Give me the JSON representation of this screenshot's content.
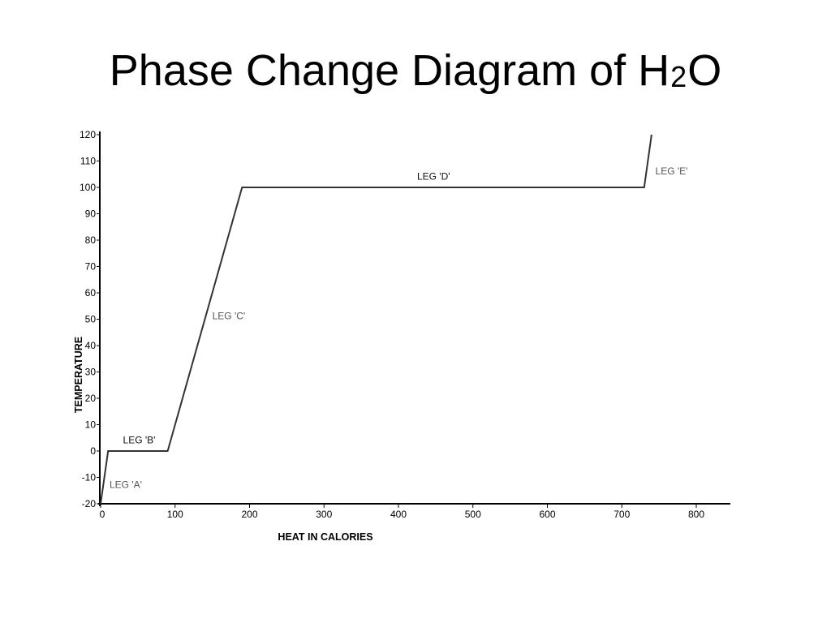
{
  "title": {
    "main": "Phase Change Diagram of H",
    "subscript": "2",
    "suffix": "O"
  },
  "chart_data": {
    "type": "line",
    "title": "Phase Change Diagram of H2O",
    "xlabel": "HEAT IN CALORIES",
    "ylabel": "TEMPERATURE",
    "xlim": [
      0,
      840
    ],
    "ylim": [
      -20,
      120
    ],
    "x_ticks": [
      0,
      100,
      200,
      300,
      400,
      500,
      600,
      700,
      800
    ],
    "y_ticks": [
      -20,
      -10,
      0,
      10,
      20,
      30,
      40,
      50,
      60,
      70,
      80,
      90,
      100,
      110,
      120
    ],
    "grid": false,
    "series": [
      {
        "points": [
          {
            "x": 0,
            "y": -20
          },
          {
            "x": 10,
            "y": 0
          },
          {
            "x": 90,
            "y": 0
          },
          {
            "x": 190,
            "y": 100
          },
          {
            "x": 730,
            "y": 100
          },
          {
            "x": 740,
            "y": 120
          }
        ]
      }
    ],
    "annotations": [
      {
        "text": "LEG 'A'",
        "x": 12,
        "y": -14,
        "shade": "light"
      },
      {
        "text": "LEG 'B'",
        "x": 30,
        "y": 3,
        "shade": "dark"
      },
      {
        "text": "LEG 'C'",
        "x": 150,
        "y": 50,
        "shade": "light"
      },
      {
        "text": "LEG 'D'",
        "x": 425,
        "y": 103,
        "shade": "dark"
      },
      {
        "text": "LEG 'E'",
        "x": 745,
        "y": 105,
        "shade": "light"
      }
    ],
    "colors": {
      "line": "#333333",
      "axis": "#000000"
    }
  }
}
